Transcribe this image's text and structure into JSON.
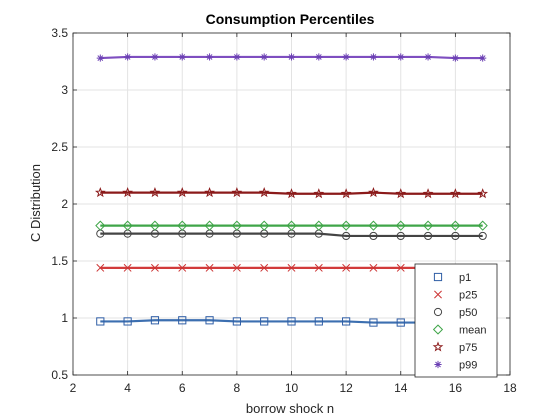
{
  "chart_data": {
    "type": "line",
    "title": "Consumption Percentiles",
    "xlabel": "borrow shock n",
    "ylabel": "C Distribution",
    "xlim": [
      2,
      18
    ],
    "ylim": [
      0.5,
      3.5
    ],
    "xticks": [
      2,
      4,
      6,
      8,
      10,
      12,
      14,
      16,
      18
    ],
    "yticks": [
      0.5,
      1,
      1.5,
      2,
      2.5,
      3,
      3.5
    ],
    "xtick_labels": [
      "2",
      "4",
      "6",
      "8",
      "10",
      "12",
      "14",
      "16",
      "18"
    ],
    "ytick_labels": [
      "0.5",
      "1",
      "1.5",
      "2",
      "2.5",
      "3",
      "3.5"
    ],
    "grid": true,
    "legend_position": "bottom-right",
    "x": [
      3,
      4,
      5,
      6,
      7,
      8,
      9,
      10,
      11,
      12,
      13,
      14,
      15,
      16,
      17
    ],
    "series": [
      {
        "name": "p1",
        "line_color": "#3c6fb0",
        "marker_color": "#2f5ea6",
        "marker": "square",
        "values": [
          0.97,
          0.97,
          0.98,
          0.98,
          0.98,
          0.97,
          0.97,
          0.97,
          0.97,
          0.97,
          0.96,
          0.96,
          0.96,
          0.96,
          0.96
        ]
      },
      {
        "name": "p25",
        "line_color": "#d23b3b",
        "marker_color": "#cc3333",
        "marker": "x",
        "values": [
          1.44,
          1.44,
          1.44,
          1.44,
          1.44,
          1.44,
          1.44,
          1.44,
          1.44,
          1.44,
          1.44,
          1.44,
          1.44,
          1.44,
          1.44
        ]
      },
      {
        "name": "p50",
        "line_color": "#444444",
        "marker_color": "#444444",
        "marker": "circle",
        "values": [
          1.74,
          1.74,
          1.74,
          1.74,
          1.74,
          1.74,
          1.74,
          1.74,
          1.74,
          1.72,
          1.72,
          1.72,
          1.72,
          1.72,
          1.72
        ]
      },
      {
        "name": "mean",
        "line_color": "#3fa548",
        "marker_color": "#3fa548",
        "marker": "diamond",
        "values": [
          1.81,
          1.81,
          1.81,
          1.81,
          1.81,
          1.81,
          1.81,
          1.81,
          1.81,
          1.81,
          1.81,
          1.81,
          1.81,
          1.81,
          1.81
        ]
      },
      {
        "name": "p75",
        "line_color": "#8b1a1a",
        "marker_color": "#8b1a1a",
        "marker": "pentagram",
        "values": [
          2.1,
          2.1,
          2.1,
          2.1,
          2.1,
          2.1,
          2.1,
          2.09,
          2.09,
          2.09,
          2.1,
          2.09,
          2.09,
          2.09,
          2.09
        ]
      },
      {
        "name": "p99",
        "line_color": "#7e4ec0",
        "marker_color": "#6a3fb3",
        "marker": "asterisk",
        "values": [
          3.28,
          3.29,
          3.29,
          3.29,
          3.29,
          3.29,
          3.29,
          3.29,
          3.29,
          3.29,
          3.29,
          3.29,
          3.29,
          3.28,
          3.28
        ]
      }
    ]
  }
}
